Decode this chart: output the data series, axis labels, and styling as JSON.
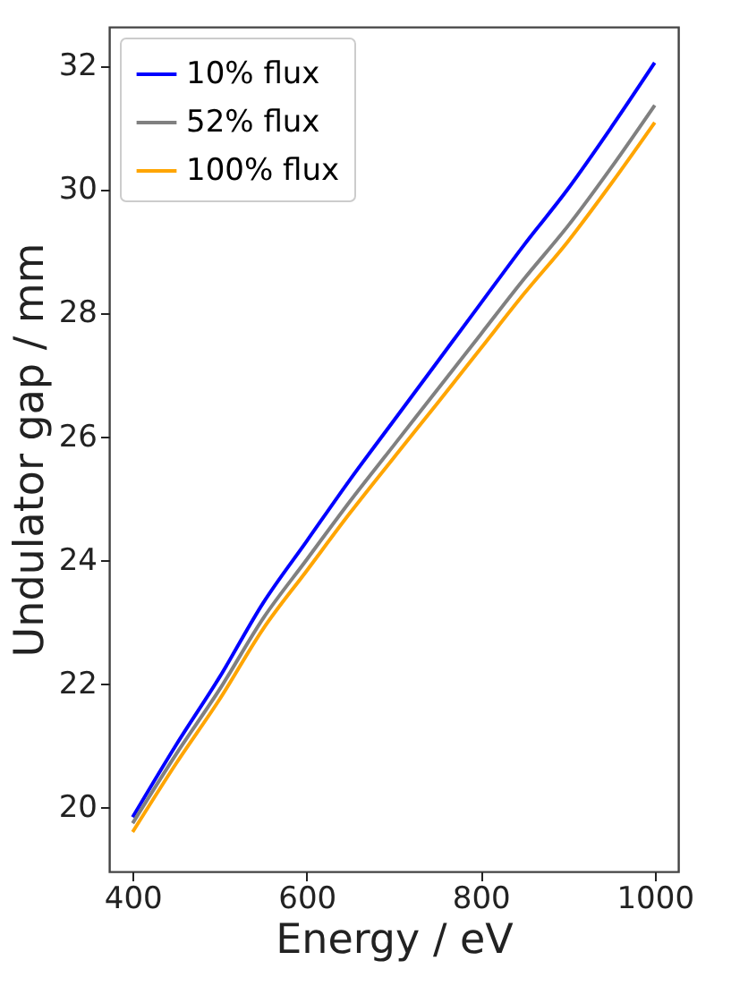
{
  "chart_data": {
    "type": "line",
    "xlabel": "Energy / eV",
    "ylabel": "Undulator gap / mm",
    "x": [
      400,
      450,
      500,
      550,
      600,
      650,
      700,
      750,
      800,
      850,
      900,
      950,
      1000
    ],
    "series": [
      {
        "name": "10% flux",
        "color": "#0000ff",
        "values": [
          19.83,
          21.0,
          22.1,
          23.3,
          24.3,
          25.3,
          26.25,
          27.2,
          28.15,
          29.1,
          30.0,
          31.0,
          32.05
        ]
      },
      {
        "name": "52% flux",
        "color": "#808080",
        "values": [
          19.73,
          20.85,
          21.9,
          23.05,
          24.0,
          24.95,
          25.85,
          26.75,
          27.65,
          28.55,
          29.4,
          30.35,
          31.36
        ]
      },
      {
        "name": "100% flux",
        "color": "#ffa500",
        "values": [
          19.59,
          20.7,
          21.74,
          22.88,
          23.82,
          24.76,
          25.65,
          26.53,
          27.42,
          28.31,
          29.15,
          30.09,
          31.08
        ]
      }
    ],
    "xlim": [
      373,
      1027
    ],
    "ylim": [
      18.95,
      32.63
    ],
    "xticks": [
      400,
      600,
      800,
      1000
    ],
    "yticks": [
      20,
      22,
      24,
      26,
      28,
      30,
      32
    ],
    "grid": false,
    "legend": "top left",
    "marker": "none",
    "line_style": "solid"
  }
}
